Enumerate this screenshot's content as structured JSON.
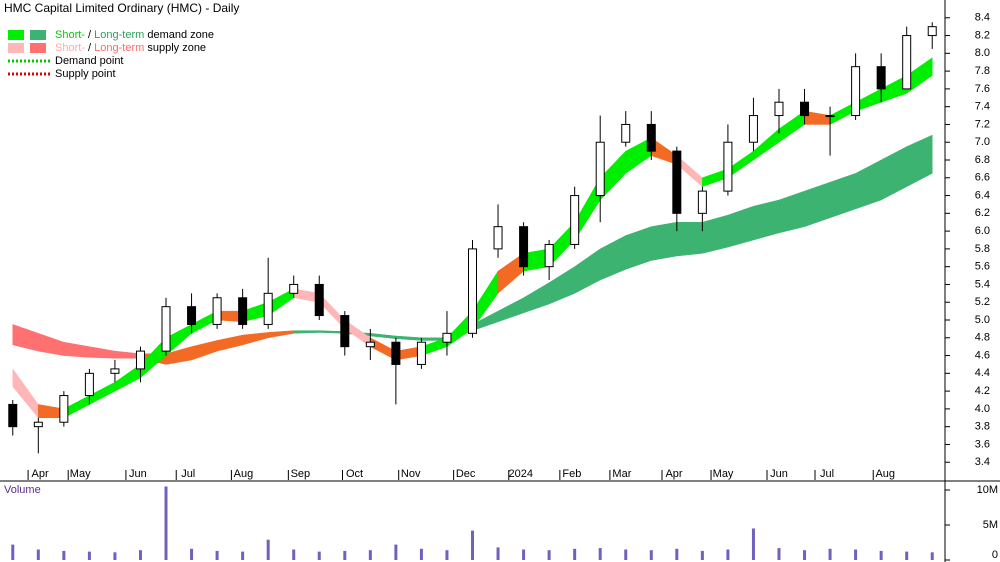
{
  "chart_data": {
    "type": "candlestick",
    "title": "HMC Capital Limited Ordinary (HMC) - Daily",
    "legend": [
      {
        "swatches": [
          "#00ee00",
          "#3cb371"
        ],
        "text_colors": [
          "#00cc00",
          "#2e9e5e"
        ],
        "short": "Short-",
        "sep": "/",
        "long": "Long-term",
        "label": "demand zone"
      },
      {
        "swatches": [
          "#ffb6b6",
          "#ff7070"
        ],
        "text_colors": [
          "#ffaaaa",
          "#ff6a6a"
        ],
        "short": "Short-",
        "sep": "/",
        "long": "Long-term",
        "label": "supply zone"
      },
      {
        "line_color": "#00cc00",
        "label": "Demand point"
      },
      {
        "line_color": "#e00000",
        "label": "Supply point"
      }
    ],
    "x": [
      0,
      1,
      2,
      3,
      4,
      5,
      6,
      7,
      8,
      9,
      10,
      11,
      12,
      13,
      14,
      15,
      16,
      17,
      18,
      19,
      20,
      21,
      22,
      23,
      24,
      25,
      26,
      27,
      28,
      29,
      30,
      31,
      32,
      33,
      34,
      35,
      36
    ],
    "xlim": [
      -0.5,
      36.5
    ],
    "xticks": [
      {
        "value": 1.07,
        "label": "Apr"
      },
      {
        "value": 2.64,
        "label": "May"
      },
      {
        "value": 4.9,
        "label": "Jun"
      },
      {
        "value": 6.87,
        "label": "Jul"
      },
      {
        "value": 9.03,
        "label": "Aug"
      },
      {
        "value": 11.26,
        "label": "Sep"
      },
      {
        "value": 13.38,
        "label": "Oct"
      },
      {
        "value": 15.58,
        "label": "Nov"
      },
      {
        "value": 17.73,
        "label": "Dec"
      },
      {
        "value": 19.89,
        "label": "2024"
      },
      {
        "value": 21.89,
        "label": "Feb"
      },
      {
        "value": 23.85,
        "label": "Mar"
      },
      {
        "value": 25.89,
        "label": "Apr"
      },
      {
        "value": 27.81,
        "label": "May"
      },
      {
        "value": 30.0,
        "label": "Jun"
      },
      {
        "value": 31.88,
        "label": "Jul"
      },
      {
        "value": 34.16,
        "label": "Aug"
      }
    ],
    "ylim": [
      3.2,
      8.6
    ],
    "yticks": [
      3.4,
      3.6,
      3.8,
      {
        "value": 4,
        "label": "4.0"
      },
      4.2,
      4.4,
      4.6,
      4.8,
      {
        "value": 5,
        "label": "5.0"
      },
      5.2,
      5.4,
      5.6,
      5.8,
      {
        "value": 6,
        "label": "6.0"
      },
      6.2,
      6.4,
      6.6,
      6.8,
      {
        "value": 7,
        "label": "7.0"
      },
      7.2,
      7.4,
      7.6,
      7.8,
      {
        "value": 8,
        "label": "8.0"
      },
      8.2,
      8.4
    ],
    "open": [
      4.05,
      3.8,
      3.85,
      4.15,
      4.4,
      4.45,
      4.65,
      5.15,
      4.95,
      5.25,
      4.95,
      5.3,
      5.4,
      5.05,
      4.7,
      4.75,
      4.5,
      4.75,
      4.85,
      5.8,
      6.05,
      5.6,
      5.85,
      6.4,
      7.0,
      7.2,
      6.9,
      6.2,
      6.45,
      7.0,
      7.3,
      7.45,
      7.3,
      7.3,
      7.85,
      7.6,
      8.2
    ],
    "high": [
      4.1,
      3.9,
      4.2,
      4.45,
      4.55,
      4.7,
      5.25,
      5.3,
      5.3,
      5.35,
      5.7,
      5.5,
      5.5,
      5.1,
      4.9,
      4.8,
      4.8,
      5.1,
      5.9,
      6.3,
      6.1,
      5.9,
      6.5,
      7.3,
      7.35,
      7.35,
      6.95,
      6.5,
      7.2,
      7.5,
      7.6,
      7.6,
      7.4,
      8.0,
      8.0,
      8.3,
      8.35
    ],
    "low": [
      3.7,
      3.5,
      3.8,
      4.05,
      4.3,
      4.3,
      4.6,
      4.85,
      4.9,
      4.9,
      4.9,
      5.25,
      5.0,
      4.6,
      4.55,
      4.05,
      4.45,
      4.6,
      4.8,
      5.7,
      5.5,
      5.45,
      5.8,
      6.1,
      6.95,
      6.8,
      6.0,
      6.0,
      6.4,
      6.9,
      7.1,
      7.2,
      6.85,
      7.25,
      7.45,
      7.6,
      8.05
    ],
    "close": [
      3.8,
      3.85,
      4.15,
      4.4,
      4.45,
      4.65,
      5.15,
      4.95,
      5.25,
      4.95,
      5.3,
      5.4,
      5.05,
      4.7,
      4.75,
      4.5,
      4.75,
      4.85,
      5.8,
      6.05,
      5.6,
      5.85,
      6.4,
      7.0,
      7.2,
      6.9,
      6.2,
      6.45,
      7.0,
      7.3,
      7.45,
      7.3,
      7.3,
      7.85,
      7.6,
      8.2,
      8.3
    ],
    "short_zone": {
      "upper": [
        4.45,
        4.05,
        4.0,
        4.15,
        4.3,
        4.5,
        4.8,
        4.95,
        5.1,
        5.1,
        5.2,
        5.35,
        5.3,
        5.0,
        4.8,
        4.65,
        4.7,
        4.8,
        5.1,
        5.55,
        5.75,
        5.8,
        6.1,
        6.6,
        6.9,
        7.05,
        6.85,
        6.6,
        6.7,
        6.9,
        7.15,
        7.35,
        7.3,
        7.45,
        7.6,
        7.75,
        7.95
      ],
      "lower": [
        4.25,
        3.9,
        3.9,
        4.05,
        4.2,
        4.35,
        4.6,
        4.85,
        5.0,
        4.98,
        5.05,
        5.25,
        5.2,
        4.9,
        4.7,
        4.55,
        4.6,
        4.7,
        4.9,
        5.3,
        5.55,
        5.6,
        5.9,
        6.35,
        6.65,
        6.85,
        6.75,
        6.5,
        6.6,
        6.8,
        7.0,
        7.2,
        7.2,
        7.35,
        7.45,
        7.55,
        7.75
      ],
      "segment_colors": [
        "#ffb6b6",
        "#f26a24",
        "#00ee00",
        "#00ee00",
        "#00ee00",
        "#00ee00",
        "#00ee00",
        "#00ee00",
        "#f26a24",
        "#00ee00",
        "#00ee00",
        "#ffb6b6",
        "#ffb6b6",
        "#ffb6b6",
        "#f26a24",
        "#f26a24",
        "#00ee00",
        "#00ee00",
        "#00ee00",
        "#f26a24",
        "#00ee00",
        "#00ee00",
        "#00ee00",
        "#00ee00",
        "#00ee00",
        "#f26a24",
        "#ffb6b6",
        "#00ee00",
        "#00ee00",
        "#00ee00",
        "#00ee00",
        "#f26a24",
        "#00ee00",
        "#00ee00",
        "#00ee00",
        "#00ee00"
      ]
    },
    "long_zone": {
      "upper": [
        4.95,
        4.85,
        4.75,
        4.7,
        4.65,
        4.62,
        4.62,
        4.7,
        4.77,
        4.83,
        4.86,
        4.88,
        4.88,
        4.87,
        4.85,
        4.82,
        4.8,
        4.8,
        4.95,
        5.1,
        5.25,
        5.42,
        5.6,
        5.8,
        5.95,
        6.05,
        6.1,
        6.1,
        6.18,
        6.28,
        6.35,
        6.45,
        6.55,
        6.65,
        6.8,
        6.95,
        7.08
      ],
      "lower": [
        4.72,
        4.65,
        4.6,
        4.58,
        4.57,
        4.57,
        4.5,
        4.55,
        4.65,
        4.72,
        4.8,
        4.85,
        4.86,
        4.85,
        4.82,
        4.79,
        4.77,
        4.77,
        4.88,
        4.98,
        5.08,
        5.18,
        5.3,
        5.45,
        5.57,
        5.67,
        5.72,
        5.75,
        5.82,
        5.9,
        5.98,
        6.05,
        6.15,
        6.25,
        6.35,
        6.5,
        6.65
      ],
      "segment_colors": [
        "#ff7070",
        "#ff7070",
        "#ff7070",
        "#ff7070",
        "#ff7070",
        "#f26a24",
        "#f26a24",
        "#f26a24",
        "#f26a24",
        "#f26a24",
        "#f26a24",
        "#3cb371",
        "#3cb371",
        "#3cb371",
        "#3cb371",
        "#3cb371",
        "#3cb371",
        "#3cb371",
        "#3cb371",
        "#3cb371",
        "#3cb371",
        "#3cb371",
        "#3cb371",
        "#3cb371",
        "#3cb371",
        "#3cb371",
        "#3cb371",
        "#3cb371",
        "#3cb371",
        "#3cb371",
        "#3cb371",
        "#3cb371",
        "#3cb371",
        "#3cb371",
        "#3cb371",
        "#3cb371"
      ]
    },
    "volume": {
      "label": "Volume",
      "color": "#7060c0",
      "values": [
        2200000,
        1500000,
        1300000,
        1200000,
        1100000,
        1400000,
        10500000,
        1600000,
        1300000,
        1200000,
        2900000,
        1500000,
        1200000,
        1300000,
        1400000,
        2200000,
        1600000,
        1400000,
        4200000,
        1800000,
        1500000,
        1400000,
        1600000,
        1700000,
        1500000,
        1400000,
        1600000,
        1300000,
        1500000,
        4500000,
        1700000,
        1400000,
        1600000,
        1500000,
        1300000,
        1200000,
        1100000
      ],
      "ylim": [
        0,
        11000000
      ],
      "yticks": [
        {
          "value": 0,
          "label": "0"
        },
        {
          "value": 5000000,
          "label": "5M"
        },
        {
          "value": 10000000,
          "label": "10M"
        }
      ]
    }
  }
}
